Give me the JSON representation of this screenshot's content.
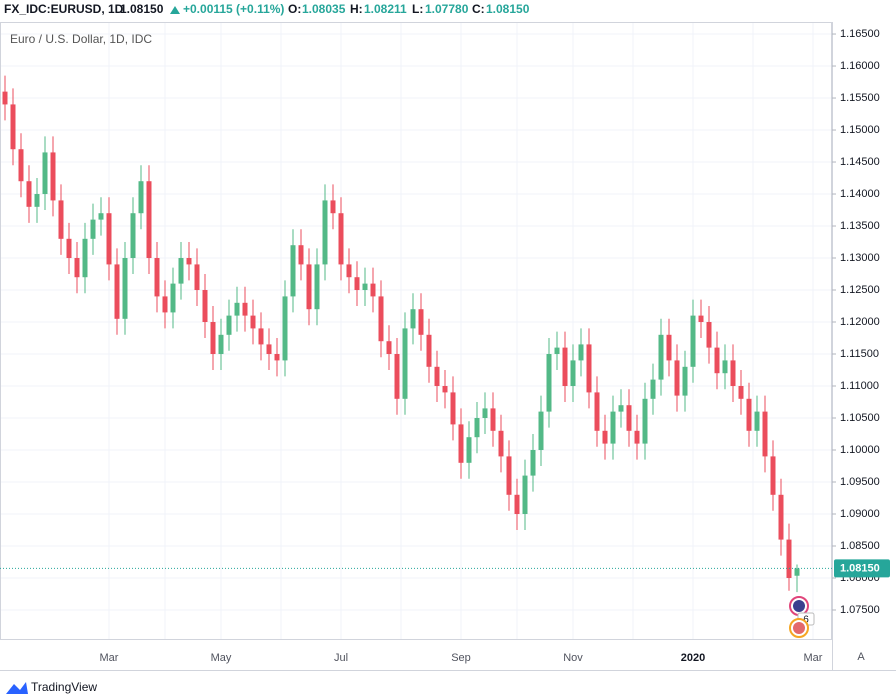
{
  "header": {
    "symbol": "FX_IDC:EURUSD, 1D",
    "last": "1.08150",
    "change": "+0.00115 (+0.11%)",
    "o_label": "O:",
    "o": "1.08035",
    "h_label": "H:",
    "h": "1.08211",
    "l_label": "L:",
    "l": "1.07780",
    "c_label": "C:",
    "c": "1.08150"
  },
  "ui": {
    "auto_button": "A",
    "brand": "TradingView",
    "events_badge": "6"
  },
  "chart_data": {
    "type": "candlestick",
    "title": "Euro / U.S. Dollar, 1D, IDC",
    "up_color": "#53b987",
    "down_color": "#eb4d5c",
    "grid": true,
    "categories": [
      null,
      null,
      null,
      null,
      null,
      null,
      null,
      null,
      null,
      null,
      null,
      null,
      null,
      "Mar",
      null,
      null,
      null,
      null,
      null,
      null,
      null,
      null,
      null,
      null,
      null,
      null,
      null,
      "May",
      null,
      null,
      null,
      null,
      null,
      null,
      null,
      null,
      null,
      null,
      null,
      null,
      null,
      null,
      "Jul",
      null,
      null,
      null,
      null,
      null,
      null,
      null,
      null,
      null,
      null,
      null,
      null,
      null,
      null,
      "Sep",
      null,
      null,
      null,
      null,
      null,
      null,
      null,
      null,
      null,
      null,
      null,
      null,
      null,
      "Nov",
      null,
      null,
      null,
      null,
      null,
      null,
      null,
      null,
      null,
      null,
      null,
      null,
      null,
      null,
      "2020",
      null,
      null,
      null,
      null,
      null,
      null,
      null,
      null,
      null,
      null,
      null,
      null,
      null,
      null,
      "Mar"
    ],
    "open": [
      1.156,
      1.154,
      1.147,
      1.142,
      1.138,
      1.14,
      1.1465,
      1.139,
      1.133,
      1.13,
      1.127,
      1.133,
      1.136,
      1.137,
      1.129,
      1.1205,
      1.13,
      1.137,
      1.142,
      1.13,
      1.124,
      1.1215,
      1.126,
      1.13,
      1.129,
      1.125,
      1.12,
      1.115,
      1.118,
      1.121,
      1.123,
      1.121,
      1.119,
      1.1165,
      1.115,
      1.114,
      1.124,
      1.132,
      1.129,
      1.122,
      1.129,
      1.139,
      1.137,
      1.129,
      1.127,
      1.125,
      1.126,
      1.124,
      1.117,
      1.115,
      1.108,
      1.119,
      1.122,
      1.118,
      1.113,
      1.11,
      1.109,
      1.104,
      1.098,
      1.102,
      1.105,
      1.1065,
      1.103,
      1.099,
      1.093,
      1.09,
      1.096,
      1.1,
      1.106,
      1.115,
      1.116,
      1.11,
      1.114,
      1.1165,
      1.109,
      1.103,
      1.101,
      1.106,
      1.107,
      1.103,
      1.101,
      1.108,
      1.111,
      1.118,
      1.114,
      1.1085,
      1.113,
      1.121,
      1.12,
      1.116,
      1.112,
      1.114,
      1.11,
      1.108,
      1.103,
      1.106,
      1.099,
      1.093,
      1.086,
      1.08035,
      null,
      null
    ],
    "high": [
      1.1585,
      1.1565,
      1.1495,
      1.1445,
      1.1425,
      1.149,
      1.149,
      1.1415,
      1.1355,
      1.1325,
      1.1355,
      1.1385,
      1.1395,
      1.1395,
      1.1315,
      1.1325,
      1.1395,
      1.1445,
      1.1445,
      1.1325,
      1.1265,
      1.1285,
      1.1325,
      1.1325,
      1.1315,
      1.1275,
      1.1225,
      1.1205,
      1.1235,
      1.1255,
      1.1255,
      1.1235,
      1.1215,
      1.119,
      1.1175,
      1.1265,
      1.1345,
      1.1345,
      1.1315,
      1.1315,
      1.1415,
      1.1415,
      1.1395,
      1.1315,
      1.1295,
      1.1285,
      1.1285,
      1.1265,
      1.1195,
      1.1175,
      1.1215,
      1.1245,
      1.1245,
      1.1205,
      1.1155,
      1.1125,
      1.1115,
      1.1065,
      1.1045,
      1.1075,
      1.109,
      1.109,
      1.1055,
      1.1015,
      1.0955,
      1.0985,
      1.1025,
      1.1085,
      1.1175,
      1.1185,
      1.1185,
      1.1165,
      1.119,
      1.119,
      1.1115,
      1.1055,
      1.1085,
      1.1095,
      1.1095,
      1.1055,
      1.1105,
      1.1135,
      1.1205,
      1.1205,
      1.1165,
      1.1155,
      1.1235,
      1.1235,
      1.1225,
      1.1185,
      1.1165,
      1.1165,
      1.1125,
      1.1105,
      1.1085,
      1.1085,
      1.1015,
      1.0955,
      1.0885,
      1.08211,
      null,
      null
    ],
    "low": [
      1.1515,
      1.1445,
      1.1395,
      1.1355,
      1.1355,
      1.1375,
      1.1365,
      1.1305,
      1.1275,
      1.1245,
      1.1245,
      1.1305,
      1.1335,
      1.1265,
      1.118,
      1.118,
      1.1275,
      1.1345,
      1.1275,
      1.1215,
      1.119,
      1.119,
      1.1235,
      1.1265,
      1.1225,
      1.1175,
      1.1125,
      1.1125,
      1.1155,
      1.1185,
      1.1185,
      1.1165,
      1.114,
      1.1125,
      1.1115,
      1.1115,
      1.1215,
      1.1265,
      1.1195,
      1.1195,
      1.1265,
      1.1345,
      1.1265,
      1.1245,
      1.1225,
      1.1225,
      1.1215,
      1.1145,
      1.1125,
      1.1055,
      1.1055,
      1.1165,
      1.1155,
      1.1105,
      1.1075,
      1.1065,
      1.1015,
      1.0955,
      1.0955,
      1.0995,
      1.1025,
      1.1005,
      1.0965,
      1.0905,
      1.0875,
      1.0875,
      1.0935,
      1.0975,
      1.1035,
      1.1125,
      1.1075,
      1.1075,
      1.1115,
      1.1065,
      1.1005,
      1.0985,
      1.0985,
      1.1035,
      1.1005,
      1.0985,
      1.0985,
      1.1055,
      1.1085,
      1.1115,
      1.106,
      1.106,
      1.1105,
      1.1175,
      1.1135,
      1.1095,
      1.1095,
      1.1075,
      1.1055,
      1.1005,
      1.1005,
      1.0965,
      1.0905,
      1.0835,
      1.078,
      1.0778,
      null,
      null
    ],
    "close": [
      1.154,
      1.147,
      1.142,
      1.138,
      1.14,
      1.1465,
      1.139,
      1.133,
      1.13,
      1.127,
      1.133,
      1.136,
      1.137,
      1.129,
      1.1205,
      1.13,
      1.137,
      1.142,
      1.13,
      1.124,
      1.1215,
      1.126,
      1.13,
      1.129,
      1.125,
      1.12,
      1.115,
      1.118,
      1.121,
      1.123,
      1.121,
      1.119,
      1.1165,
      1.115,
      1.114,
      1.124,
      1.132,
      1.129,
      1.122,
      1.129,
      1.139,
      1.137,
      1.129,
      1.127,
      1.125,
      1.126,
      1.124,
      1.117,
      1.115,
      1.108,
      1.119,
      1.122,
      1.118,
      1.113,
      1.11,
      1.109,
      1.104,
      1.098,
      1.102,
      1.105,
      1.1065,
      1.103,
      1.099,
      1.093,
      1.09,
      1.096,
      1.1,
      1.106,
      1.115,
      1.116,
      1.11,
      1.114,
      1.1165,
      1.109,
      1.103,
      1.101,
      1.106,
      1.107,
      1.103,
      1.101,
      1.108,
      1.111,
      1.118,
      1.114,
      1.1085,
      1.113,
      1.121,
      1.12,
      1.116,
      1.112,
      1.114,
      1.11,
      1.108,
      1.103,
      1.106,
      1.099,
      1.093,
      1.086,
      1.08,
      1.0815,
      null,
      null
    ],
    "last_price": {
      "value": 1.0815,
      "label": "1.08150"
    },
    "last_price_color": "#26a69a",
    "ylim": [
      1.07031,
      1.16688
    ],
    "yticks": [
      {
        "value": 1.075,
        "label": "1.07500"
      },
      {
        "value": 1.08,
        "label": "1.08000"
      },
      {
        "value": 1.085,
        "label": "1.08500"
      },
      {
        "value": 1.09,
        "label": "1.09000"
      },
      {
        "value": 1.095,
        "label": "1.09500"
      },
      {
        "value": 1.1,
        "label": "1.10000"
      },
      {
        "value": 1.105,
        "label": "1.10500"
      },
      {
        "value": 1.11,
        "label": "1.11000"
      },
      {
        "value": 1.115,
        "label": "1.11500"
      },
      {
        "value": 1.12,
        "label": "1.12000"
      },
      {
        "value": 1.125,
        "label": "1.12500"
      },
      {
        "value": 1.13,
        "label": "1.13000"
      },
      {
        "value": 1.135,
        "label": "1.13500"
      },
      {
        "value": 1.14,
        "label": "1.14000"
      },
      {
        "value": 1.145,
        "label": "1.14500"
      },
      {
        "value": 1.15,
        "label": "1.15000"
      },
      {
        "value": 1.155,
        "label": "1.15500"
      },
      {
        "value": 1.16,
        "label": "1.16000"
      },
      {
        "value": 1.165,
        "label": "1.16500"
      }
    ]
  }
}
